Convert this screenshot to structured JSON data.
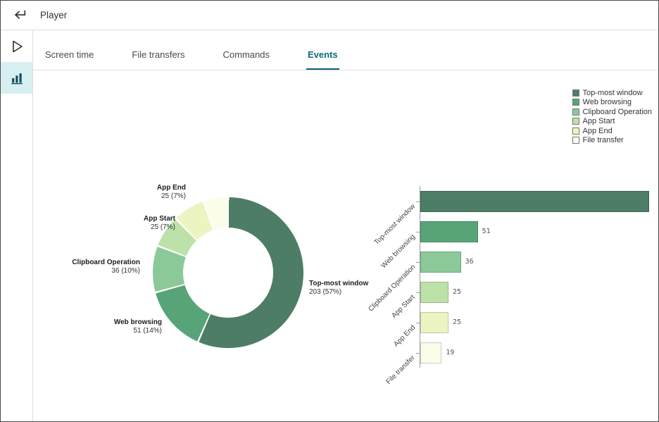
{
  "window": {
    "title": "Player"
  },
  "header": {
    "back_label": "Back"
  },
  "sidebar": {
    "items": [
      {
        "id": "player",
        "icon": "play-icon",
        "active": false
      },
      {
        "id": "analytics",
        "icon": "bar-chart-icon",
        "active": true
      }
    ]
  },
  "tabs": [
    {
      "label": "Screen time",
      "active": false
    },
    {
      "label": "File transfers",
      "active": false
    },
    {
      "label": "Commands",
      "active": false
    },
    {
      "label": "Events",
      "active": true
    }
  ],
  "colors": {
    "tab_active": "#0a6b7c",
    "sidebar_active_bg": "#d7eff1",
    "series": [
      "#4d7d66",
      "#57a478",
      "#8cc998",
      "#bce2a9",
      "#ecf4c2",
      "#fbfcea"
    ]
  },
  "legend": {
    "items": [
      {
        "label": "Top-most window",
        "color": "#4d7d66"
      },
      {
        "label": "Web browsing",
        "color": "#57a478"
      },
      {
        "label": "Clipboard Operation",
        "color": "#8cc998"
      },
      {
        "label": "App Start",
        "color": "#bce2a9"
      },
      {
        "label": "App End",
        "color": "#ecf4c2"
      },
      {
        "label": "File transfer",
        "color": "#fbfcea"
      }
    ]
  },
  "chart_data": [
    {
      "type": "pie",
      "subtype": "donut",
      "categories": [
        "Top-most window",
        "Web browsing",
        "Clipboard Operation",
        "App Start",
        "App End",
        "File transfer"
      ],
      "values": [
        203,
        51,
        36,
        25,
        25,
        19
      ],
      "percents": [
        57,
        14,
        10,
        7,
        7,
        5
      ],
      "colors": [
        "#4d7d66",
        "#57a478",
        "#8cc998",
        "#bce2a9",
        "#ecf4c2",
        "#fbfcea"
      ],
      "legend_position": "top-right",
      "point_labels": [
        {
          "name": "App End",
          "value": "25 (7%)"
        },
        {
          "name": "App Start",
          "value": "25 (7%)"
        },
        {
          "name": "Clipboard Operation",
          "value": "36 (10%)"
        },
        {
          "name": "Web browsing",
          "value": "51 (14%)"
        },
        {
          "name": "Top-most window",
          "value": "203 (57%)"
        }
      ]
    },
    {
      "type": "bar",
      "orientation": "horizontal",
      "categories": [
        "Top-most window",
        "Web browsing",
        "Clipboard Operation",
        "App Start",
        "App End",
        "File transfer"
      ],
      "values": [
        203,
        51,
        36,
        25,
        25,
        19
      ],
      "value_labels": [
        "",
        "51",
        "36",
        "25",
        "25",
        "19"
      ],
      "xlim": [
        0,
        203
      ],
      "grid": false
    }
  ]
}
